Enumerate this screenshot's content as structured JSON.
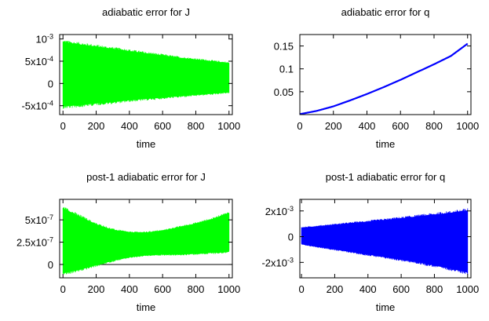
{
  "chart_data": [
    {
      "type": "line",
      "title": "adiabatic error for J",
      "xlabel": "time",
      "ylabel": "",
      "xlim": [
        -20,
        1020
      ],
      "ylim": [
        -0.0007,
        0.0011
      ],
      "x_ticks": [
        "0",
        "200",
        "400",
        "600",
        "800",
        "1000"
      ],
      "y_ticks": [
        {
          "value": 0.001,
          "base": "10",
          "exp": "-3"
        },
        {
          "value": 0.0005,
          "base": "5x10",
          "exp": "-4"
        },
        {
          "value": 0,
          "base": "0",
          "exp": ""
        },
        {
          "value": -0.0005,
          "base": "-5x10",
          "exp": "-4"
        }
      ],
      "series": [
        {
          "color": "#00ff00",
          "style": "oscillation-band",
          "x": [
            0,
            100,
            200,
            300,
            400,
            500,
            600,
            700,
            800,
            900,
            1000
          ],
          "upper": [
            0.00093,
            0.00088,
            0.00083,
            0.00078,
            0.00073,
            0.00068,
            0.00063,
            0.00058,
            0.00054,
            0.0005,
            0.00046
          ],
          "lower": [
            -0.00052,
            -0.00049,
            -0.00045,
            -0.00042,
            -0.00038,
            -0.00035,
            -0.00032,
            -0.00029,
            -0.00026,
            -0.00023,
            -0.0002
          ]
        }
      ]
    },
    {
      "type": "line",
      "title": "adiabatic error for q",
      "xlabel": "time",
      "ylabel": "",
      "xlim": [
        0,
        1020
      ],
      "ylim": [
        0,
        0.175
      ],
      "x_ticks": [
        "0",
        "200",
        "400",
        "600",
        "800",
        "1000"
      ],
      "y_ticks": [
        {
          "value": 0.15,
          "base": "0.15",
          "exp": ""
        },
        {
          "value": 0.1,
          "base": "0.1",
          "exp": ""
        },
        {
          "value": 0.05,
          "base": "0.05",
          "exp": ""
        }
      ],
      "series": [
        {
          "color": "#0000ff",
          "style": "line",
          "x": [
            0,
            100,
            200,
            300,
            400,
            500,
            600,
            700,
            800,
            900,
            1000
          ],
          "y": [
            0.001,
            0.008,
            0.018,
            0.031,
            0.045,
            0.06,
            0.076,
            0.093,
            0.11,
            0.128,
            0.155
          ]
        }
      ]
    },
    {
      "type": "line",
      "title": "post-1 adiabatic error for J",
      "xlabel": "time",
      "ylabel": "",
      "xlim": [
        -20,
        1020
      ],
      "ylim": [
        -1.5e-07,
        7.3e-07
      ],
      "x_ticks": [
        "0",
        "200",
        "400",
        "600",
        "800",
        "1000"
      ],
      "y_ticks": [
        {
          "value": 5e-07,
          "base": "5x10",
          "exp": "-7"
        },
        {
          "value": 2.5e-07,
          "base": "2.5x10",
          "exp": "-7"
        },
        {
          "value": 0,
          "base": "0",
          "exp": ""
        }
      ],
      "zero_line": true,
      "series": [
        {
          "color": "#00ff00",
          "style": "oscillation-band",
          "x": [
            0,
            100,
            200,
            300,
            400,
            500,
            600,
            700,
            800,
            900,
            1000
          ],
          "upper": [
            6.3e-07,
            5.4e-07,
            4.5e-07,
            3.9e-07,
            3.6e-07,
            3.6e-07,
            3.8e-07,
            4.2e-07,
            4.6e-07,
            5.1e-07,
            5.8e-07
          ],
          "lower": [
            -1e-07,
            -6e-08,
            -1e-08,
            4e-08,
            8e-08,
            1e-07,
            1.1e-07,
            1.1e-07,
            1.2e-07,
            1.3e-07,
            1.4e-07
          ]
        }
      ]
    },
    {
      "type": "line",
      "title": "post-1 adiabatic error for q",
      "xlabel": "time",
      "ylabel": "",
      "xlim": [
        -10,
        1020
      ],
      "ylim": [
        -0.0032,
        0.0029
      ],
      "x_ticks": [
        "0",
        "200",
        "400",
        "600",
        "800",
        "1000"
      ],
      "y_ticks": [
        {
          "value": 0.002,
          "base": "2x10",
          "exp": "-3"
        },
        {
          "value": 0,
          "base": "0",
          "exp": ""
        },
        {
          "value": -0.002,
          "base": "-2x10",
          "exp": "-3"
        }
      ],
      "series": [
        {
          "color": "#0000ff",
          "style": "oscillation-band",
          "x": [
            0,
            100,
            200,
            300,
            400,
            500,
            600,
            700,
            800,
            900,
            1000
          ],
          "upper": [
            0.0007,
            0.00082,
            0.00094,
            0.00106,
            0.00118,
            0.0013,
            0.00144,
            0.00158,
            0.00172,
            0.00186,
            0.00205
          ],
          "lower": [
            -0.0006,
            -0.0008,
            -0.001,
            -0.0012,
            -0.0014,
            -0.0016,
            -0.0018,
            -0.002,
            -0.00225,
            -0.0025,
            -0.0028
          ]
        }
      ]
    }
  ]
}
